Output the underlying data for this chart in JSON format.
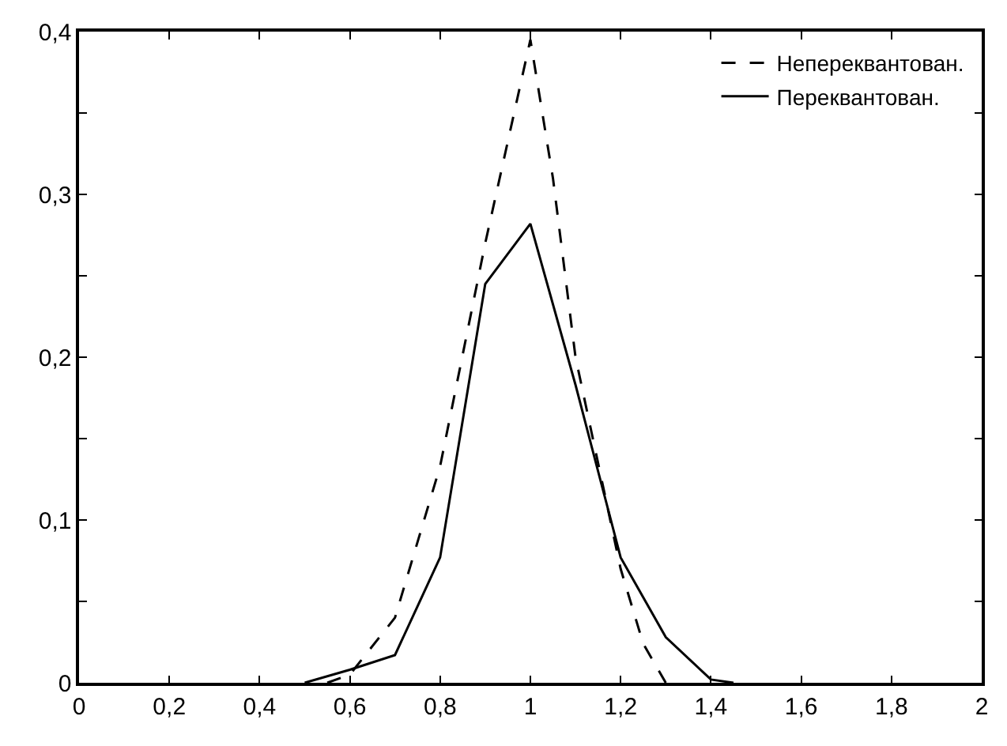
{
  "chart_data": {
    "type": "line",
    "series": [
      {
        "name": "Непереквантован.",
        "color": "#000000",
        "line_style": "dashed",
        "x": [
          0.55,
          0.6,
          0.7,
          0.8,
          0.9,
          1.0,
          1.05,
          1.1,
          1.2,
          1.25,
          1.3
        ],
        "values": [
          0,
          0.005,
          0.04,
          0.133,
          0.27,
          0.395,
          0.31,
          0.2,
          0.07,
          0.024,
          0
        ]
      },
      {
        "name": "Переквантован.",
        "color": "#000000",
        "line_style": "solid",
        "x": [
          0.5,
          0.6,
          0.7,
          0.8,
          0.9,
          1.0,
          1.1,
          1.2,
          1.3,
          1.4,
          1.45
        ],
        "values": [
          0,
          0.008,
          0.017,
          0.077,
          0.245,
          0.282,
          0.183,
          0.077,
          0.028,
          0.002,
          0
        ]
      }
    ],
    "xlim": [
      0,
      2
    ],
    "ylim": [
      0,
      0.4
    ],
    "xticks": [
      0,
      {
        "value": 0.2,
        "label": "0,2"
      },
      {
        "value": 0.4,
        "label": "0,4"
      },
      {
        "value": 0.6,
        "label": "0,6"
      },
      {
        "value": 0.8,
        "label": "0,8"
      },
      1,
      {
        "value": 1.2,
        "label": "1,2"
      },
      {
        "value": 1.4,
        "label": "1,4"
      },
      {
        "value": 1.6,
        "label": "1,6"
      },
      {
        "value": 1.8,
        "label": "1,8"
      },
      2
    ],
    "yticks": [
      0,
      {
        "value": 0.05,
        "label": null
      },
      {
        "value": 0.1,
        "label": "0,1"
      },
      {
        "value": 0.15,
        "label": null
      },
      {
        "value": 0.2,
        "label": "0,2"
      },
      {
        "value": 0.25,
        "label": null
      },
      {
        "value": 0.3,
        "label": "0,3"
      },
      {
        "value": 0.35,
        "label": null
      },
      {
        "value": 0.4,
        "label": "0,4"
      }
    ],
    "legend": "top right",
    "marker": "none"
  }
}
